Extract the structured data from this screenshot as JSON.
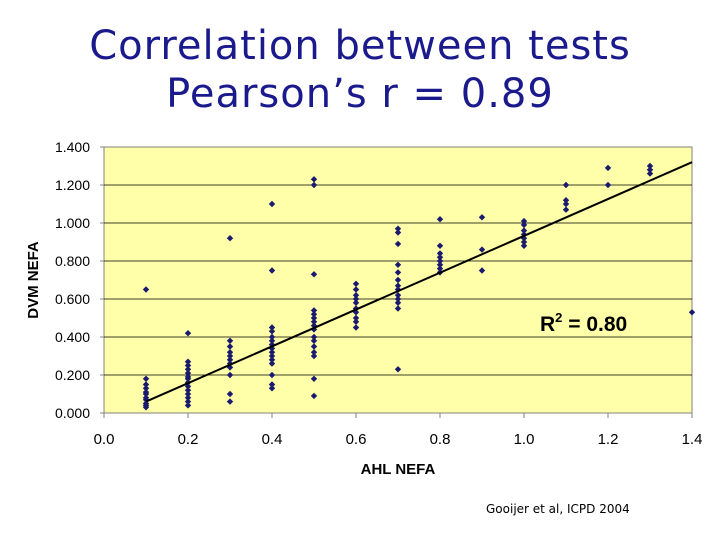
{
  "title_lines": [
    "Correlation between tests",
    "Pearson’s r = 0.89"
  ],
  "credit": "Gooijer et al, ICPD 2004",
  "chart_data": {
    "type": "scatter",
    "xlabel": "AHL NEFA",
    "ylabel": "DVM NEFA",
    "xlim": [
      0.0,
      1.4
    ],
    "ylim": [
      0.0,
      1.4
    ],
    "x_ticks": [
      "0.0",
      "0.2",
      "0.4",
      "0.6",
      "0.8",
      "1.0",
      "1.2",
      "1.4"
    ],
    "y_ticks": [
      "0.000",
      "0.200",
      "0.400",
      "0.600",
      "0.800",
      "1.000",
      "1.200",
      "1.400"
    ],
    "grid": "horizontal",
    "annotation": "R² = 0.80",
    "trendline": {
      "x": [
        0.1,
        1.4
      ],
      "y": [
        0.06,
        1.32
      ]
    },
    "colors": {
      "plot_bg": "#ffffaa",
      "marker": "#1a1a6e",
      "title": "#1a1a8c"
    },
    "points": [
      [
        0.1,
        0.65
      ],
      [
        0.1,
        0.18
      ],
      [
        0.1,
        0.15
      ],
      [
        0.1,
        0.13
      ],
      [
        0.1,
        0.11
      ],
      [
        0.1,
        0.1
      ],
      [
        0.1,
        0.08
      ],
      [
        0.1,
        0.07
      ],
      [
        0.1,
        0.05
      ],
      [
        0.1,
        0.04
      ],
      [
        0.1,
        0.03
      ],
      [
        0.2,
        0.42
      ],
      [
        0.2,
        0.27
      ],
      [
        0.2,
        0.25
      ],
      [
        0.2,
        0.23
      ],
      [
        0.2,
        0.21
      ],
      [
        0.2,
        0.19
      ],
      [
        0.2,
        0.18
      ],
      [
        0.2,
        0.16
      ],
      [
        0.2,
        0.14
      ],
      [
        0.2,
        0.12
      ],
      [
        0.2,
        0.1
      ],
      [
        0.2,
        0.08
      ],
      [
        0.2,
        0.06
      ],
      [
        0.2,
        0.04
      ],
      [
        0.3,
        0.92
      ],
      [
        0.3,
        0.38
      ],
      [
        0.3,
        0.35
      ],
      [
        0.3,
        0.32
      ],
      [
        0.3,
        0.3
      ],
      [
        0.3,
        0.28
      ],
      [
        0.3,
        0.26
      ],
      [
        0.3,
        0.24
      ],
      [
        0.3,
        0.2
      ],
      [
        0.3,
        0.1
      ],
      [
        0.3,
        0.06
      ],
      [
        0.4,
        1.1
      ],
      [
        0.4,
        0.75
      ],
      [
        0.4,
        0.45
      ],
      [
        0.4,
        0.43
      ],
      [
        0.4,
        0.4
      ],
      [
        0.4,
        0.38
      ],
      [
        0.4,
        0.36
      ],
      [
        0.4,
        0.34
      ],
      [
        0.4,
        0.32
      ],
      [
        0.4,
        0.3
      ],
      [
        0.4,
        0.28
      ],
      [
        0.4,
        0.26
      ],
      [
        0.4,
        0.2
      ],
      [
        0.4,
        0.15
      ],
      [
        0.4,
        0.13
      ],
      [
        0.5,
        1.23
      ],
      [
        0.5,
        1.2
      ],
      [
        0.5,
        0.73
      ],
      [
        0.5,
        0.54
      ],
      [
        0.5,
        0.52
      ],
      [
        0.5,
        0.5
      ],
      [
        0.5,
        0.48
      ],
      [
        0.5,
        0.46
      ],
      [
        0.5,
        0.44
      ],
      [
        0.5,
        0.4
      ],
      [
        0.5,
        0.38
      ],
      [
        0.5,
        0.35
      ],
      [
        0.5,
        0.32
      ],
      [
        0.5,
        0.3
      ],
      [
        0.5,
        0.18
      ],
      [
        0.5,
        0.09
      ],
      [
        0.6,
        0.68
      ],
      [
        0.6,
        0.65
      ],
      [
        0.6,
        0.62
      ],
      [
        0.6,
        0.6
      ],
      [
        0.6,
        0.58
      ],
      [
        0.6,
        0.55
      ],
      [
        0.6,
        0.53
      ],
      [
        0.6,
        0.5
      ],
      [
        0.6,
        0.48
      ],
      [
        0.6,
        0.45
      ],
      [
        0.7,
        0.97
      ],
      [
        0.7,
        0.95
      ],
      [
        0.7,
        0.89
      ],
      [
        0.7,
        0.78
      ],
      [
        0.7,
        0.74
      ],
      [
        0.7,
        0.7
      ],
      [
        0.7,
        0.67
      ],
      [
        0.7,
        0.65
      ],
      [
        0.7,
        0.62
      ],
      [
        0.7,
        0.6
      ],
      [
        0.7,
        0.58
      ],
      [
        0.7,
        0.55
      ],
      [
        0.7,
        0.23
      ],
      [
        0.8,
        1.02
      ],
      [
        0.8,
        0.88
      ],
      [
        0.8,
        0.84
      ],
      [
        0.8,
        0.82
      ],
      [
        0.8,
        0.8
      ],
      [
        0.8,
        0.78
      ],
      [
        0.8,
        0.76
      ],
      [
        0.8,
        0.74
      ],
      [
        0.9,
        1.03
      ],
      [
        0.9,
        0.86
      ],
      [
        0.9,
        0.75
      ],
      [
        1.0,
        1.01
      ],
      [
        1.0,
        0.99
      ],
      [
        1.0,
        0.96
      ],
      [
        1.0,
        0.94
      ],
      [
        1.0,
        0.92
      ],
      [
        1.0,
        0.9
      ],
      [
        1.0,
        0.88
      ],
      [
        1.1,
        1.2
      ],
      [
        1.1,
        1.12
      ],
      [
        1.1,
        1.1
      ],
      [
        1.1,
        1.07
      ],
      [
        1.2,
        1.29
      ],
      [
        1.2,
        1.2
      ],
      [
        1.3,
        1.3
      ],
      [
        1.3,
        1.28
      ],
      [
        1.3,
        1.26
      ],
      [
        1.4,
        0.53
      ]
    ]
  }
}
